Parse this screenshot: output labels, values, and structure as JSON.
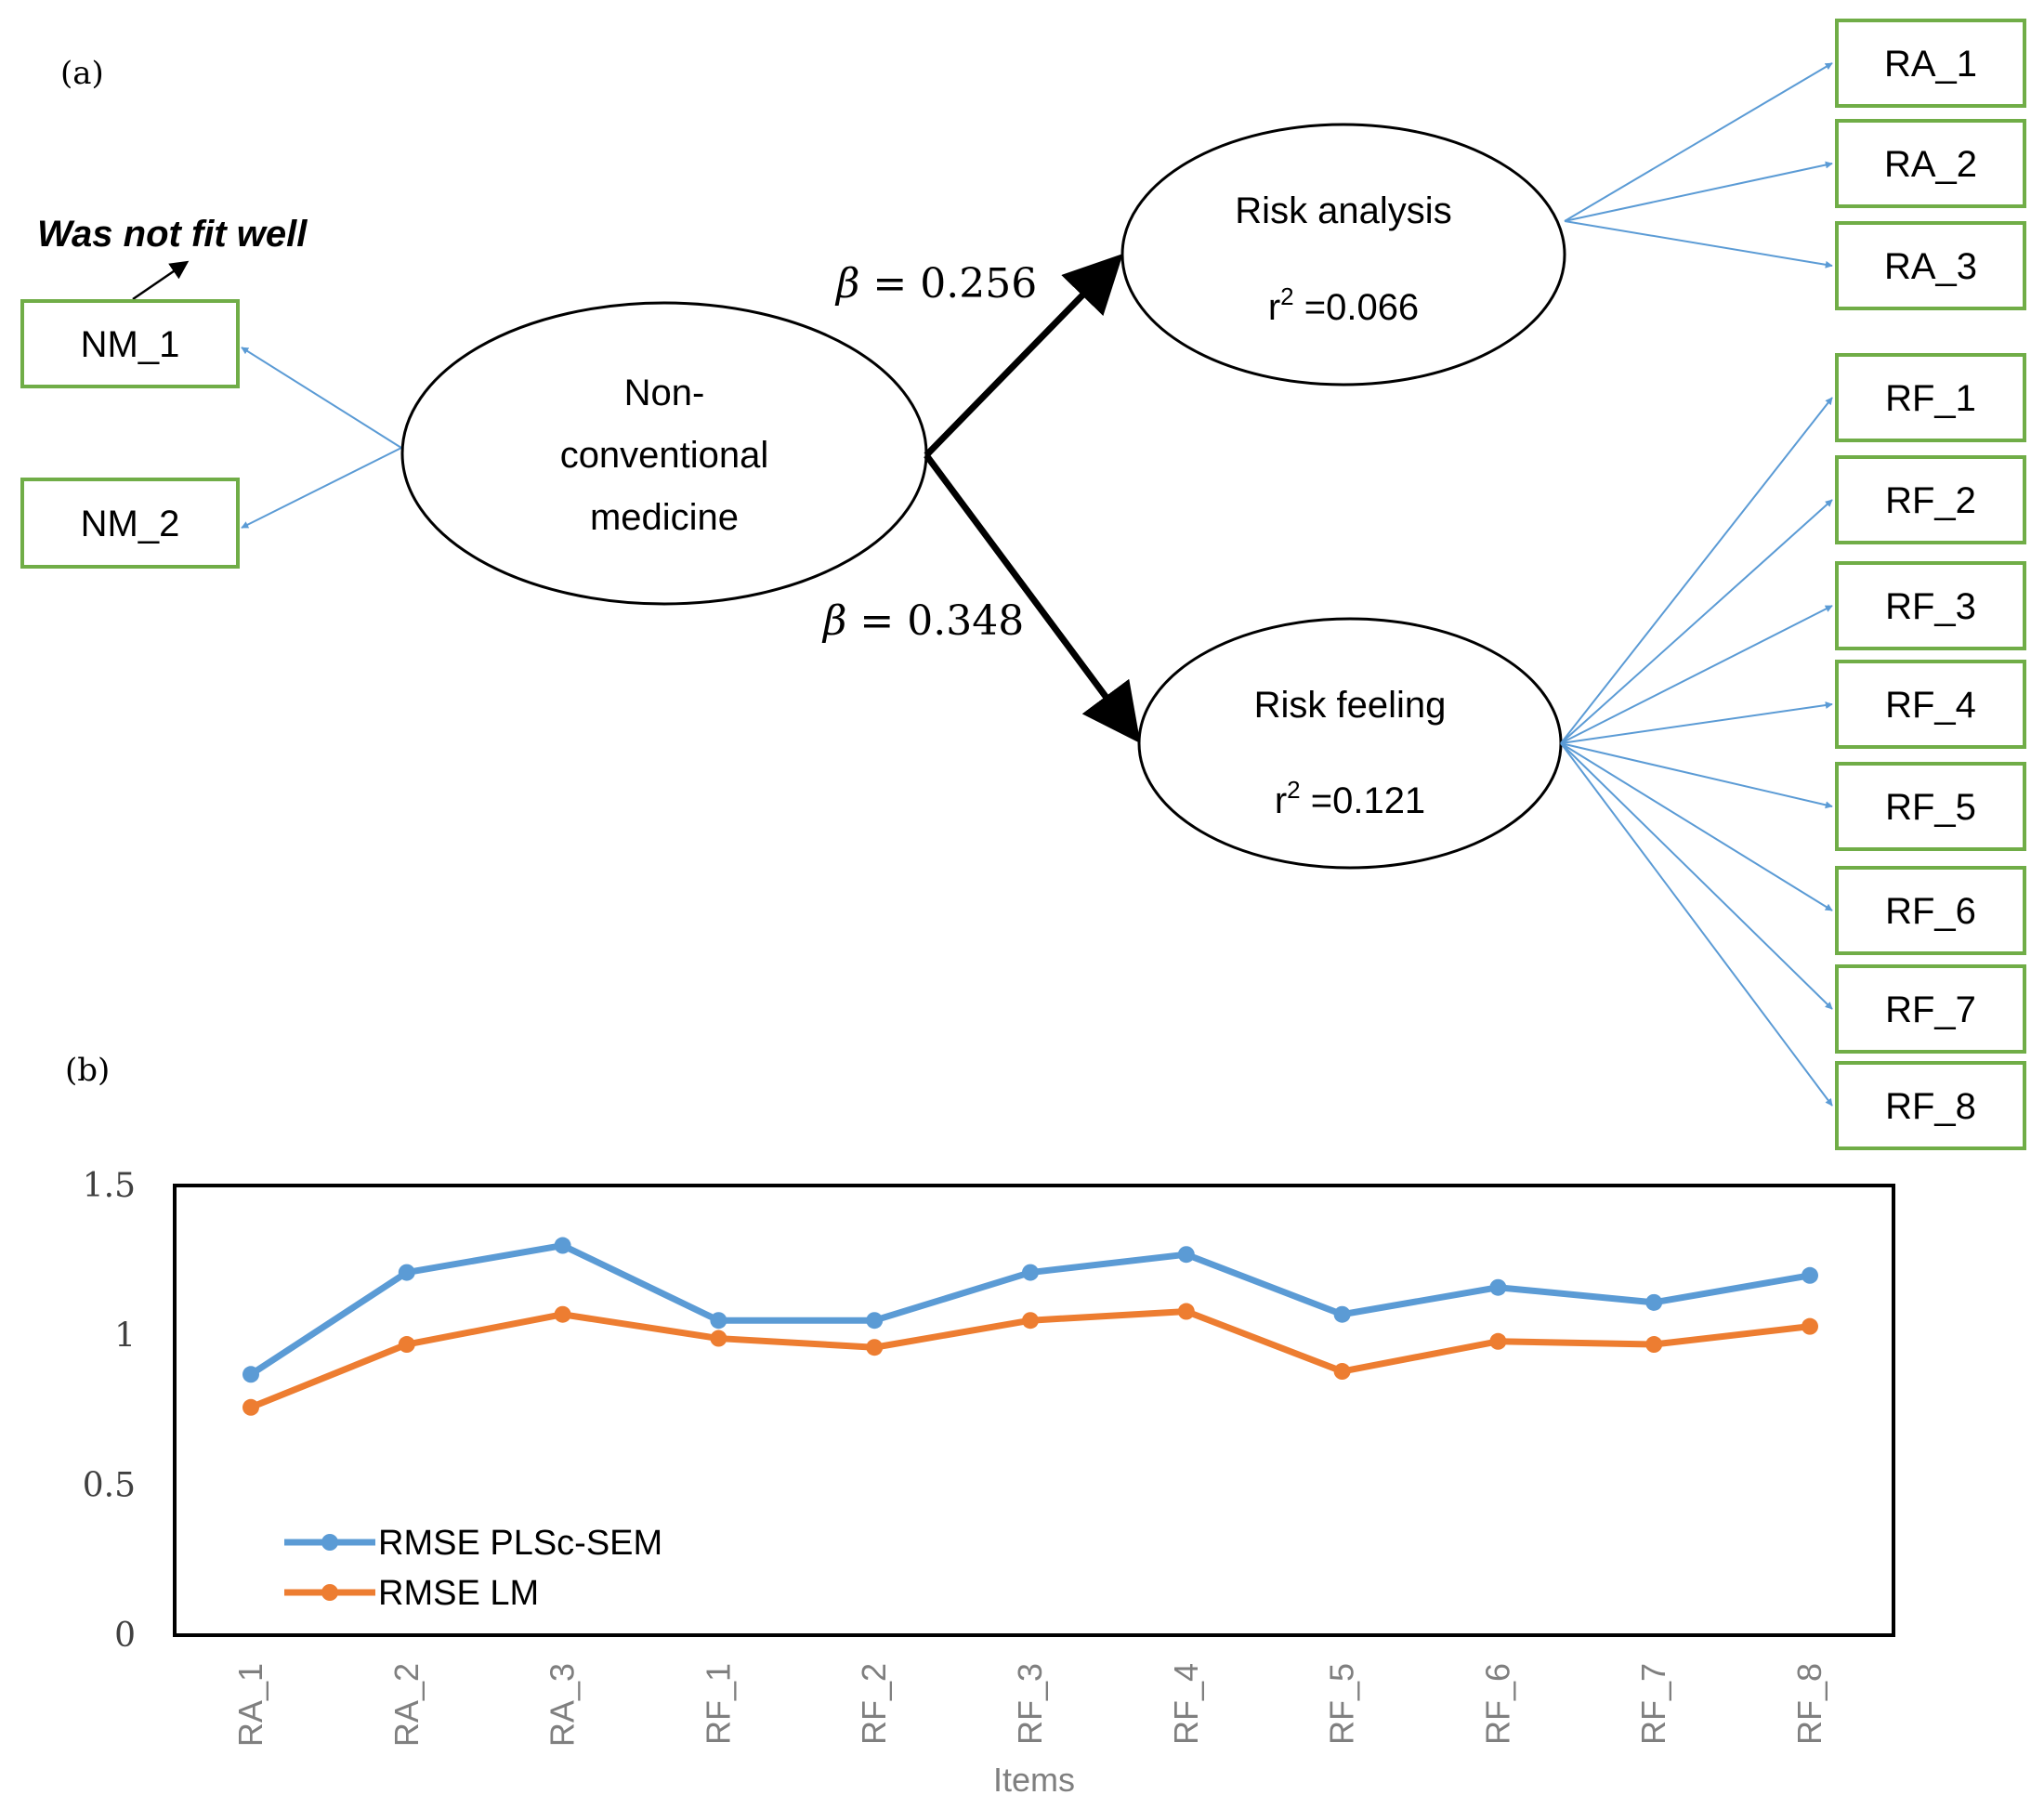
{
  "panel_a": {
    "label": "(a)",
    "note": "Was not fit well",
    "center_node": {
      "line1": "Non-",
      "line2": "conventional",
      "line3": "medicine"
    },
    "risk_analysis": {
      "title": "Risk analysis",
      "r2_prefix": "r",
      "r2_sup": "2",
      "r2_value": " =0.066"
    },
    "risk_feeling": {
      "title": "Risk feeling",
      "r2_prefix": "r",
      "r2_sup": "2",
      "r2_value": " =0.121"
    },
    "beta_ra": {
      "symbol": "β",
      "text": " = 0.256"
    },
    "beta_rf": {
      "symbol": "β",
      "text": " = 0.348"
    },
    "nm_items": [
      "NM_1",
      "NM_2"
    ],
    "ra_items": [
      "RA_1",
      "RA_2",
      "RA_3"
    ],
    "rf_items": [
      "RF_1",
      "RF_2",
      "RF_3",
      "RF_4",
      "RF_5",
      "RF_6",
      "RF_7",
      "RF_8"
    ],
    "colors": {
      "box_border": "#70ad47",
      "arrow": "#5b9bd5",
      "path": "#000000"
    }
  },
  "panel_b": {
    "label": "(b)"
  },
  "chart_data": {
    "type": "line",
    "categories": [
      "RA_1",
      "RA_2",
      "RA_3",
      "RF_1",
      "RF_2",
      "RF_3",
      "RF_4",
      "RF_5",
      "RF_6",
      "RF_7",
      "RF_8"
    ],
    "series": [
      {
        "name": "RMSE PLSc-SEM",
        "color": "#5b9bd5",
        "values": [
          0.87,
          1.21,
          1.3,
          1.05,
          1.05,
          1.21,
          1.27,
          1.07,
          1.16,
          1.11,
          1.2
        ]
      },
      {
        "name": "RMSE LM",
        "color": "#ed7d31",
        "values": [
          0.76,
          0.97,
          1.07,
          0.99,
          0.96,
          1.05,
          1.08,
          0.88,
          0.98,
          0.97,
          1.03
        ]
      }
    ],
    "xlabel": "Items",
    "ylabel": "",
    "ylim": [
      0,
      1.5
    ],
    "yticks": [
      "0",
      "0.5",
      "1",
      "1.5"
    ],
    "grid": false,
    "legend": "bottom-left"
  }
}
